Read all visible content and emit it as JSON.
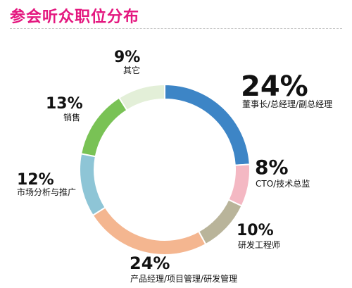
{
  "header": {
    "title": "参会听众职位分布"
  },
  "chart_data": {
    "type": "pie",
    "title": "参会听众职位分布",
    "slices": [
      {
        "label": "董事长/总经理/副总经理",
        "value": 24,
        "pct_text": "24%",
        "color": "#3d85c6"
      },
      {
        "label": "CTO/技术总监",
        "value": 8,
        "pct_text": "8%",
        "color": "#f4b8c3"
      },
      {
        "label": "研发工程师",
        "value": 10,
        "pct_text": "10%",
        "color": "#b9b49a"
      },
      {
        "label": "产品经理/项目管理/研发管理",
        "value": 24,
        "pct_text": "24%",
        "color": "#f4b690"
      },
      {
        "label": "市场分析与推广",
        "value": 12,
        "pct_text": "12%",
        "color": "#8ec5d6"
      },
      {
        "label": "销售",
        "value": 13,
        "pct_text": "13%",
        "color": "#79c255"
      },
      {
        "label": "其它",
        "value": 9,
        "pct_text": "9%",
        "color": "#e3efd8"
      }
    ]
  }
}
